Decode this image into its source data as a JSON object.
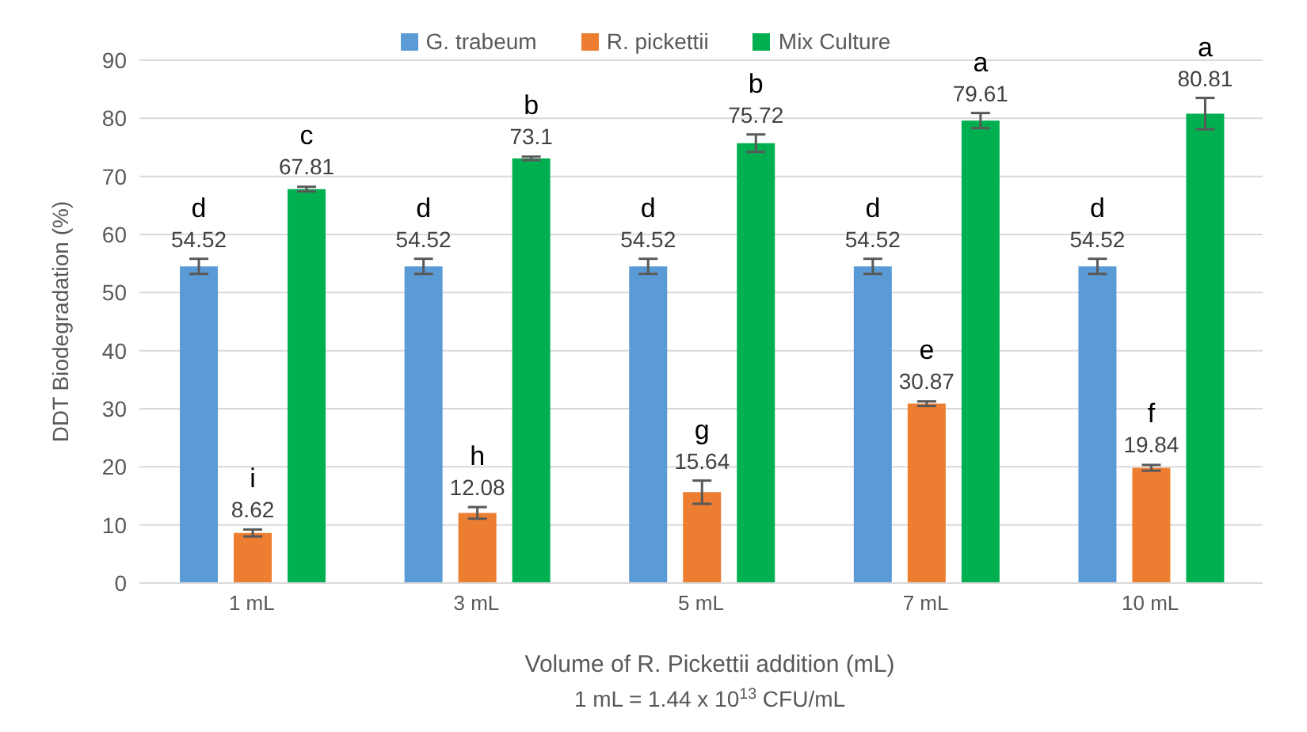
{
  "chart_data": {
    "type": "bar",
    "ylabel": "DDT Biodegradation (%)",
    "xlabel": "Volume of R. Pickettii addition (mL)",
    "categories": [
      "1 mL",
      "3 mL",
      "5 mL",
      "7 mL",
      "10 mL"
    ],
    "series": [
      {
        "name": "G. trabeum",
        "color": "#5b9bd5",
        "values": [
          54.52,
          54.52,
          54.52,
          54.52,
          54.52
        ],
        "errors": [
          1.3,
          1.3,
          1.3,
          1.3,
          1.3
        ]
      },
      {
        "name": "R. pickettii",
        "color": "#ed7d31",
        "values": [
          8.62,
          12.08,
          15.64,
          30.87,
          19.84
        ],
        "errors": [
          0.6,
          1,
          2,
          0.4,
          0.5
        ]
      },
      {
        "name": "Mix Culture",
        "color": "#00b050",
        "values": [
          67.81,
          73.1,
          75.72,
          79.61,
          80.81
        ],
        "errors": [
          0.4,
          0.3,
          1.5,
          1.3,
          2.7
        ]
      }
    ],
    "ylim": [
      0,
      90
    ],
    "yticks": [
      0,
      10,
      20,
      30,
      40,
      50,
      60,
      70,
      80,
      90
    ],
    "grid": "y",
    "legend": "top",
    "data_labels": true,
    "annotations": [
      "d",
      "i",
      "c",
      "d",
      "h",
      "b",
      "d",
      "g",
      "b",
      "d",
      "e",
      "a",
      "d",
      "f",
      "a",
      "1 mL = 1.44 x 10$^{13}$ CFU/mL"
    ]
  }
}
